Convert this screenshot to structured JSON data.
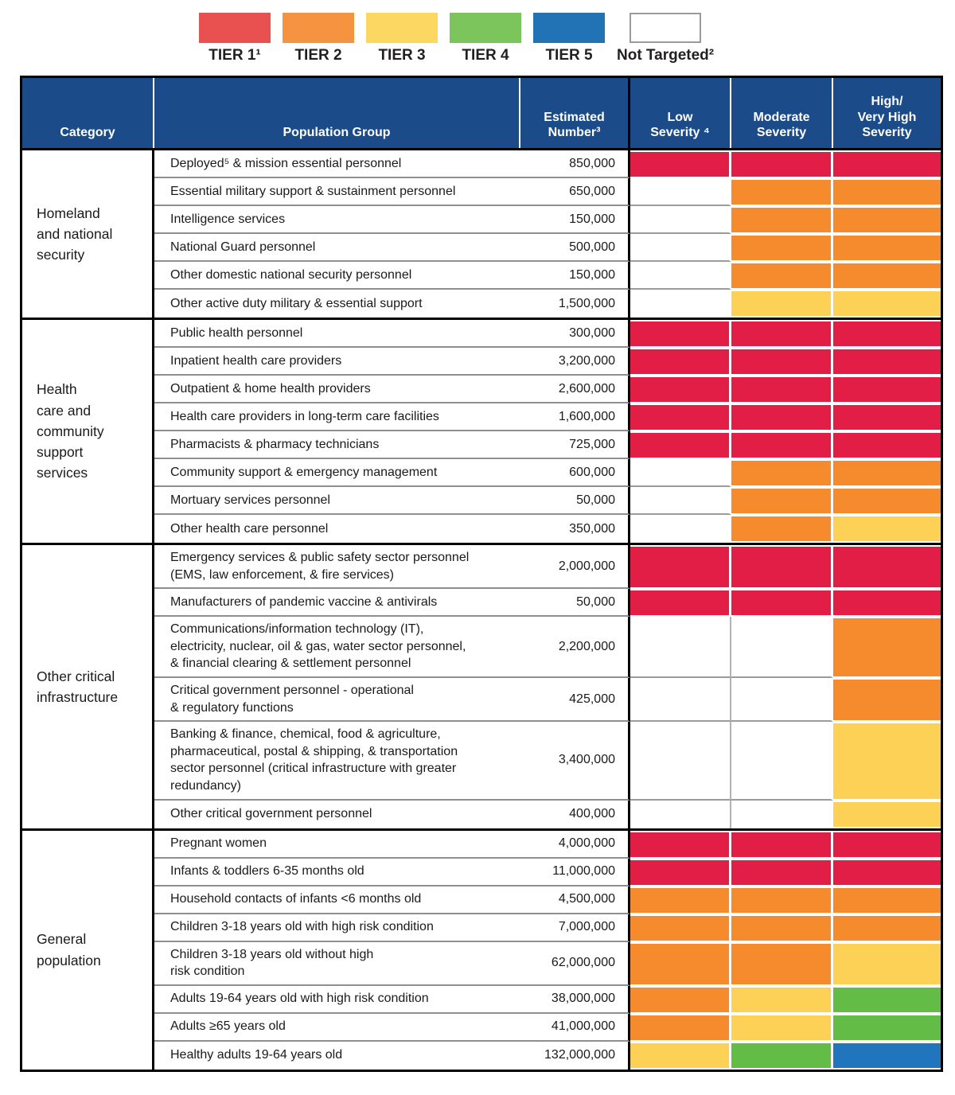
{
  "legend": {
    "items": [
      {
        "label": "TIER 1¹",
        "color": "#E8514F",
        "outlined": false,
        "icon": "tier-1-swatch"
      },
      {
        "label": "TIER 2",
        "color": "#F69340",
        "outlined": false,
        "icon": "tier-2-swatch"
      },
      {
        "label": "TIER 3",
        "color": "#FCD863",
        "outlined": false,
        "icon": "tier-3-swatch"
      },
      {
        "label": "TIER 4",
        "color": "#7CC45C",
        "outlined": false,
        "icon": "tier-4-swatch"
      },
      {
        "label": "TIER 5",
        "color": "#2173B6",
        "outlined": false,
        "icon": "tier-5-swatch"
      },
      {
        "label": "Not Targeted²",
        "color": "#FFFFFF",
        "outlined": true,
        "icon": "not-targeted-swatch"
      }
    ]
  },
  "table": {
    "header_bg": "#1B4C89",
    "tier_colors": {
      "tier1": "#E21D46",
      "tier2": "#F58B2C",
      "tier3": "#FDD155",
      "tier4": "#63BC46",
      "tier5": "#2075BC",
      "not_targeted": "#FFFFFF"
    },
    "headers": {
      "category": "Category",
      "population_group": "Population Group",
      "estimated_number": "Estimated\nNumber³",
      "low_severity": "Low\nSeverity ⁴",
      "moderate_severity": "Moderate\nSeverity",
      "high_severity": "High/\nVery High\nSeverity"
    },
    "sections": [
      {
        "category": "Homeland\nand national\nsecurity",
        "rows": [
          {
            "group": "Deployed⁵ & mission essential personnel",
            "number": "850,000",
            "severity": [
              "tier1",
              "tier1",
              "tier1"
            ]
          },
          {
            "group": "Essential military support & sustainment personnel",
            "number": "650,000",
            "severity": [
              "not_targeted",
              "tier2",
              "tier2"
            ]
          },
          {
            "group": "Intelligence services",
            "number": "150,000",
            "severity": [
              "not_targeted",
              "tier2",
              "tier2"
            ]
          },
          {
            "group": "National Guard personnel",
            "number": "500,000",
            "severity": [
              "not_targeted",
              "tier2",
              "tier2"
            ]
          },
          {
            "group": "Other domestic national security personnel",
            "number": "150,000",
            "severity": [
              "not_targeted",
              "tier2",
              "tier2"
            ]
          },
          {
            "group": "Other active duty military & essential support",
            "number": "1,500,000",
            "severity": [
              "not_targeted",
              "tier3",
              "tier3"
            ]
          }
        ]
      },
      {
        "category": "Health\ncare and\ncommunity\nsupport\nservices",
        "rows": [
          {
            "group": "Public health personnel",
            "number": "300,000",
            "severity": [
              "tier1",
              "tier1",
              "tier1"
            ]
          },
          {
            "group": "Inpatient health care providers",
            "number": "3,200,000",
            "severity": [
              "tier1",
              "tier1",
              "tier1"
            ]
          },
          {
            "group": "Outpatient & home health providers",
            "number": "2,600,000",
            "severity": [
              "tier1",
              "tier1",
              "tier1"
            ]
          },
          {
            "group": "Health care providers in long-term care facilities",
            "number": "1,600,000",
            "severity": [
              "tier1",
              "tier1",
              "tier1"
            ]
          },
          {
            "group": "Pharmacists & pharmacy technicians",
            "number": "725,000",
            "severity": [
              "tier1",
              "tier1",
              "tier1"
            ]
          },
          {
            "group": "Community support & emergency management",
            "number": "600,000",
            "severity": [
              "not_targeted",
              "tier2",
              "tier2"
            ]
          },
          {
            "group": "Mortuary services personnel",
            "number": "50,000",
            "severity": [
              "not_targeted",
              "tier2",
              "tier2"
            ]
          },
          {
            "group": "Other health care personnel",
            "number": "350,000",
            "severity": [
              "not_targeted",
              "tier2",
              "tier3"
            ]
          }
        ]
      },
      {
        "category": "Other critical\ninfrastructure",
        "rows": [
          {
            "group": "Emergency services & public safety sector personnel\n(EMS, law enforcement, & fire services)",
            "number": "2,000,000",
            "severity": [
              "tier1",
              "tier1",
              "tier1"
            ]
          },
          {
            "group": "Manufacturers of pandemic vaccine & antivirals",
            "number": "50,000",
            "severity": [
              "tier1",
              "tier1",
              "tier1"
            ]
          },
          {
            "group": "Communications/information technology (IT),\nelectricity, nuclear, oil & gas, water sector personnel,\n& financial clearing & settlement personnel",
            "number": "2,200,000",
            "severity": [
              "not_targeted",
              "not_targeted",
              "tier2"
            ]
          },
          {
            "group": "Critical government personnel - operational\n& regulatory functions",
            "number": "425,000",
            "severity": [
              "not_targeted",
              "not_targeted",
              "tier2"
            ]
          },
          {
            "group": "Banking & finance, chemical, food & agriculture,\npharmaceutical, postal & shipping, & transportation\nsector personnel (critical infrastructure with greater\nredundancy)",
            "number": "3,400,000",
            "severity": [
              "not_targeted",
              "not_targeted",
              "tier3"
            ]
          },
          {
            "group": "Other critical government personnel",
            "number": "400,000",
            "severity": [
              "not_targeted",
              "not_targeted",
              "tier3"
            ]
          }
        ]
      },
      {
        "category": "General\npopulation",
        "rows": [
          {
            "group": "Pregnant women",
            "number": "4,000,000",
            "severity": [
              "tier1",
              "tier1",
              "tier1"
            ]
          },
          {
            "group": "Infants & toddlers 6-35 months old",
            "number": "11,000,000",
            "severity": [
              "tier1",
              "tier1",
              "tier1"
            ]
          },
          {
            "group": "Household contacts of infants <6 months old",
            "number": "4,500,000",
            "severity": [
              "tier2",
              "tier2",
              "tier2"
            ]
          },
          {
            "group": "Children 3-18 years old with high risk condition",
            "number": "7,000,000",
            "severity": [
              "tier2",
              "tier2",
              "tier2"
            ]
          },
          {
            "group": "Children 3-18 years old without high\nrisk condition",
            "number": "62,000,000",
            "severity": [
              "tier2",
              "tier2",
              "tier3"
            ]
          },
          {
            "group": "Adults 19-64 years old with high risk condition",
            "number": "38,000,000",
            "severity": [
              "tier2",
              "tier3",
              "tier4"
            ]
          },
          {
            "group": "Adults ≥65 years old",
            "number": "41,000,000",
            "severity": [
              "tier2",
              "tier3",
              "tier4"
            ]
          },
          {
            "group": "Healthy adults 19-64 years old",
            "number": "132,000,000",
            "severity": [
              "tier3",
              "tier4",
              "tier5"
            ]
          }
        ]
      }
    ]
  }
}
